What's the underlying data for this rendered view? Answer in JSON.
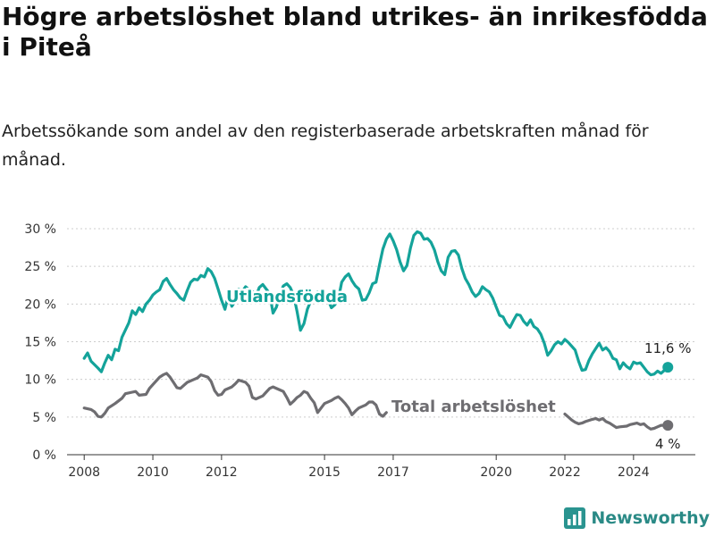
{
  "header": {
    "title": "Högre arbetslöshet bland utrikes- än inrikesfödda i Piteå",
    "subtitle": "Arbetssökande som andel av den registerbaserade arbetskraften månad för månad."
  },
  "brand": {
    "name": "Newsworthy",
    "icon": "bar-chart-logo-icon",
    "color": "#2a9490"
  },
  "chart_data": {
    "type": "line",
    "x_ticks": [
      "2008",
      "2010",
      "2012",
      "2015",
      "2017",
      "2020",
      "2022",
      "2024"
    ],
    "y_ticks": [
      "0 %",
      "5 %",
      "10 %",
      "15 %",
      "20 %",
      "25 %",
      "30 %"
    ],
    "ylim": [
      0,
      30
    ],
    "xlim": [
      2007.5,
      2025.8
    ],
    "grid": true,
    "series": [
      {
        "name": "Utlandsfödda",
        "color": "#14a39a",
        "end_label": "11,6 %",
        "points": [
          [
            2008.0,
            12.8
          ],
          [
            2008.1,
            13.5
          ],
          [
            2008.2,
            12.4
          ],
          [
            2008.4,
            11.5
          ],
          [
            2008.5,
            11.0
          ],
          [
            2008.6,
            12.2
          ],
          [
            2008.7,
            13.2
          ],
          [
            2008.8,
            12.6
          ],
          [
            2008.9,
            14.0
          ],
          [
            2009.0,
            13.8
          ],
          [
            2009.1,
            15.6
          ],
          [
            2009.3,
            17.5
          ],
          [
            2009.4,
            19.1
          ],
          [
            2009.5,
            18.6
          ],
          [
            2009.6,
            19.5
          ],
          [
            2009.7,
            19.0
          ],
          [
            2009.8,
            20.0
          ],
          [
            2009.9,
            20.5
          ],
          [
            2010.0,
            21.2
          ],
          [
            2010.1,
            21.6
          ],
          [
            2010.2,
            21.9
          ],
          [
            2010.3,
            23.0
          ],
          [
            2010.4,
            23.4
          ],
          [
            2010.5,
            22.6
          ],
          [
            2010.6,
            21.9
          ],
          [
            2010.7,
            21.4
          ],
          [
            2010.8,
            20.8
          ],
          [
            2010.9,
            20.5
          ],
          [
            2011.0,
            21.8
          ],
          [
            2011.1,
            22.9
          ],
          [
            2011.2,
            23.3
          ],
          [
            2011.3,
            23.2
          ],
          [
            2011.4,
            23.8
          ],
          [
            2011.5,
            23.6
          ],
          [
            2011.6,
            24.7
          ],
          [
            2011.7,
            24.3
          ],
          [
            2011.8,
            23.4
          ],
          [
            2011.9,
            22.0
          ],
          [
            2012.0,
            20.5
          ],
          [
            2012.1,
            19.3
          ],
          [
            2012.2,
            21.2
          ],
          [
            2012.3,
            19.7
          ],
          [
            2012.4,
            20.4
          ],
          [
            2012.5,
            22.0
          ],
          [
            2012.6,
            21.6
          ],
          [
            2012.7,
            22.3
          ],
          [
            2012.8,
            21.9
          ],
          [
            2012.9,
            21.7
          ],
          [
            2013.0,
            21.0
          ],
          [
            2013.1,
            22.2
          ],
          [
            2013.2,
            22.6
          ],
          [
            2013.3,
            22.0
          ],
          [
            2013.4,
            21.4
          ],
          [
            2013.5,
            18.8
          ],
          [
            2013.6,
            19.6
          ],
          [
            2013.7,
            21.2
          ],
          [
            2013.8,
            22.4
          ],
          [
            2013.9,
            22.7
          ],
          [
            2014.0,
            22.2
          ],
          [
            2014.1,
            21.2
          ],
          [
            2014.2,
            19.0
          ],
          [
            2014.3,
            16.5
          ],
          [
            2014.4,
            17.4
          ],
          [
            2014.5,
            19.3
          ],
          [
            2014.6,
            20.4
          ],
          [
            2014.8,
            21.6
          ],
          [
            2015.0,
            21.2
          ],
          [
            2015.1,
            20.6
          ],
          [
            2015.2,
            19.5
          ],
          [
            2015.3,
            19.9
          ],
          [
            2015.4,
            20.6
          ],
          [
            2015.5,
            22.9
          ],
          [
            2015.6,
            23.6
          ],
          [
            2015.7,
            24.0
          ],
          [
            2015.8,
            23.1
          ],
          [
            2015.9,
            22.4
          ],
          [
            2016.0,
            22.0
          ],
          [
            2016.1,
            20.5
          ],
          [
            2016.2,
            20.6
          ],
          [
            2016.3,
            21.5
          ],
          [
            2016.4,
            22.7
          ],
          [
            2016.5,
            22.9
          ],
          [
            2016.6,
            25.2
          ],
          [
            2016.7,
            27.3
          ],
          [
            2016.8,
            28.6
          ],
          [
            2016.9,
            29.3
          ],
          [
            2017.0,
            28.4
          ],
          [
            2017.1,
            27.2
          ],
          [
            2017.2,
            25.6
          ],
          [
            2017.3,
            24.4
          ],
          [
            2017.4,
            25.1
          ],
          [
            2017.5,
            27.4
          ],
          [
            2017.6,
            29.1
          ],
          [
            2017.7,
            29.6
          ],
          [
            2017.8,
            29.4
          ],
          [
            2017.9,
            28.6
          ],
          [
            2018.0,
            28.7
          ],
          [
            2018.1,
            28.2
          ],
          [
            2018.2,
            27.2
          ],
          [
            2018.3,
            25.6
          ],
          [
            2018.4,
            24.4
          ],
          [
            2018.5,
            23.9
          ],
          [
            2018.6,
            26.2
          ],
          [
            2018.7,
            27.0
          ],
          [
            2018.8,
            27.1
          ],
          [
            2018.9,
            26.5
          ],
          [
            2019.0,
            24.7
          ],
          [
            2019.1,
            23.4
          ],
          [
            2019.2,
            22.6
          ],
          [
            2019.3,
            21.6
          ],
          [
            2019.4,
            21.0
          ],
          [
            2019.5,
            21.4
          ],
          [
            2019.6,
            22.3
          ],
          [
            2019.7,
            21.9
          ],
          [
            2019.8,
            21.6
          ],
          [
            2019.9,
            20.8
          ],
          [
            2020.0,
            19.6
          ],
          [
            2020.1,
            18.5
          ],
          [
            2020.2,
            18.3
          ],
          [
            2020.3,
            17.4
          ],
          [
            2020.4,
            16.9
          ],
          [
            2020.5,
            17.8
          ],
          [
            2020.6,
            18.6
          ],
          [
            2020.7,
            18.5
          ],
          [
            2020.8,
            17.7
          ],
          [
            2020.9,
            17.2
          ],
          [
            2021.0,
            17.9
          ],
          [
            2021.1,
            17.0
          ],
          [
            2021.2,
            16.7
          ],
          [
            2021.3,
            16.0
          ],
          [
            2021.4,
            14.8
          ],
          [
            2021.5,
            13.2
          ],
          [
            2021.6,
            13.8
          ],
          [
            2021.7,
            14.6
          ],
          [
            2021.8,
            15.0
          ],
          [
            2021.9,
            14.7
          ],
          [
            2022.0,
            15.3
          ],
          [
            2022.1,
            14.9
          ],
          [
            2022.2,
            14.4
          ],
          [
            2022.3,
            13.9
          ],
          [
            2022.4,
            12.4
          ],
          [
            2022.5,
            11.2
          ],
          [
            2022.6,
            11.3
          ],
          [
            2022.7,
            12.5
          ],
          [
            2022.8,
            13.4
          ],
          [
            2022.9,
            14.1
          ],
          [
            2023.0,
            14.8
          ],
          [
            2023.1,
            13.9
          ],
          [
            2023.2,
            14.2
          ],
          [
            2023.3,
            13.7
          ],
          [
            2023.4,
            12.8
          ],
          [
            2023.5,
            12.6
          ],
          [
            2023.6,
            11.4
          ],
          [
            2023.7,
            12.2
          ],
          [
            2023.8,
            11.7
          ],
          [
            2023.9,
            11.4
          ],
          [
            2024.0,
            12.3
          ],
          [
            2024.1,
            12.1
          ],
          [
            2024.2,
            12.2
          ],
          [
            2024.3,
            11.6
          ],
          [
            2024.4,
            11.0
          ],
          [
            2024.5,
            10.6
          ],
          [
            2024.6,
            10.7
          ],
          [
            2024.7,
            11.1
          ],
          [
            2024.8,
            10.8
          ],
          [
            2024.9,
            11.2
          ],
          [
            2025.0,
            11.6
          ]
        ]
      },
      {
        "name": "Total arbetslöshet",
        "color": "#6e6d71",
        "end_label": "4 %",
        "points": [
          [
            2008.0,
            6.2
          ],
          [
            2008.2,
            6.0
          ],
          [
            2008.3,
            5.7
          ],
          [
            2008.4,
            5.1
          ],
          [
            2008.5,
            5.0
          ],
          [
            2008.6,
            5.5
          ],
          [
            2008.7,
            6.2
          ],
          [
            2008.9,
            6.8
          ],
          [
            2009.1,
            7.5
          ],
          [
            2009.2,
            8.1
          ],
          [
            2009.4,
            8.3
          ],
          [
            2009.5,
            8.4
          ],
          [
            2009.6,
            7.9
          ],
          [
            2009.8,
            8.0
          ],
          [
            2009.9,
            8.8
          ],
          [
            2010.0,
            9.3
          ],
          [
            2010.2,
            10.3
          ],
          [
            2010.3,
            10.6
          ],
          [
            2010.4,
            10.8
          ],
          [
            2010.5,
            10.3
          ],
          [
            2010.6,
            9.6
          ],
          [
            2010.7,
            8.9
          ],
          [
            2010.8,
            8.8
          ],
          [
            2010.9,
            9.2
          ],
          [
            2011.0,
            9.6
          ],
          [
            2011.2,
            10.0
          ],
          [
            2011.3,
            10.2
          ],
          [
            2011.4,
            10.6
          ],
          [
            2011.6,
            10.3
          ],
          [
            2011.7,
            9.7
          ],
          [
            2011.8,
            8.5
          ],
          [
            2011.9,
            7.9
          ],
          [
            2012.0,
            8.0
          ],
          [
            2012.1,
            8.6
          ],
          [
            2012.3,
            9.0
          ],
          [
            2012.4,
            9.4
          ],
          [
            2012.5,
            9.9
          ],
          [
            2012.7,
            9.6
          ],
          [
            2012.8,
            9.1
          ],
          [
            2012.9,
            7.6
          ],
          [
            2013.0,
            7.4
          ],
          [
            2013.2,
            7.8
          ],
          [
            2013.3,
            8.3
          ],
          [
            2013.4,
            8.8
          ],
          [
            2013.5,
            9.0
          ],
          [
            2013.7,
            8.6
          ],
          [
            2013.8,
            8.4
          ],
          [
            2013.9,
            7.6
          ],
          [
            2014.0,
            6.7
          ],
          [
            2014.1,
            7.1
          ],
          [
            2014.2,
            7.6
          ],
          [
            2014.3,
            7.9
          ],
          [
            2014.4,
            8.4
          ],
          [
            2014.5,
            8.2
          ],
          [
            2014.6,
            7.5
          ],
          [
            2014.7,
            6.9
          ],
          [
            2014.8,
            5.6
          ],
          [
            2014.9,
            6.2
          ],
          [
            2015.0,
            6.8
          ],
          [
            2015.2,
            7.2
          ],
          [
            2015.3,
            7.5
          ],
          [
            2015.4,
            7.7
          ],
          [
            2015.5,
            7.3
          ],
          [
            2015.6,
            6.8
          ],
          [
            2015.7,
            6.2
          ],
          [
            2015.8,
            5.3
          ],
          [
            2015.9,
            5.8
          ],
          [
            2016.0,
            6.2
          ],
          [
            2016.2,
            6.6
          ],
          [
            2016.3,
            7.0
          ],
          [
            2016.4,
            7.0
          ],
          [
            2016.5,
            6.6
          ],
          [
            2016.6,
            5.4
          ],
          [
            2016.7,
            5.1
          ],
          [
            2016.8,
            5.6
          ]
        ],
        "points_tail": [
          [
            2022.0,
            5.4
          ],
          [
            2022.1,
            5.0
          ],
          [
            2022.2,
            4.6
          ],
          [
            2022.3,
            4.3
          ],
          [
            2022.4,
            4.1
          ],
          [
            2022.5,
            4.2
          ],
          [
            2022.6,
            4.4
          ],
          [
            2022.8,
            4.7
          ],
          [
            2022.9,
            4.8
          ],
          [
            2023.0,
            4.6
          ],
          [
            2023.1,
            4.8
          ],
          [
            2023.2,
            4.4
          ],
          [
            2023.3,
            4.2
          ],
          [
            2023.4,
            3.9
          ],
          [
            2023.5,
            3.6
          ],
          [
            2023.6,
            3.7
          ],
          [
            2023.8,
            3.8
          ],
          [
            2023.9,
            4.0
          ],
          [
            2024.0,
            4.1
          ],
          [
            2024.1,
            4.2
          ],
          [
            2024.2,
            4.0
          ],
          [
            2024.3,
            4.1
          ],
          [
            2024.4,
            3.7
          ],
          [
            2024.5,
            3.4
          ],
          [
            2024.6,
            3.5
          ],
          [
            2024.7,
            3.7
          ],
          [
            2024.8,
            3.9
          ],
          [
            2024.9,
            3.9
          ],
          [
            2025.0,
            3.9
          ]
        ]
      }
    ]
  }
}
